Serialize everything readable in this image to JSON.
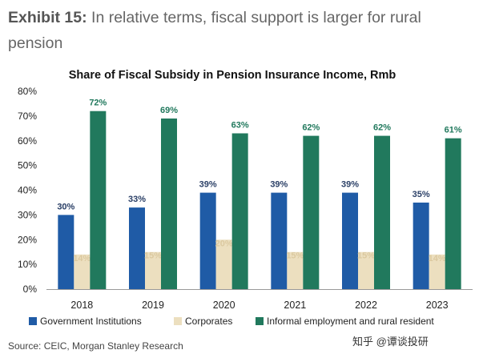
{
  "exhibit": {
    "label": "Exhibit 15:",
    "text": "In relative terms, fiscal support is larger for rural pension"
  },
  "colors": {
    "government": "#1f5ba6",
    "corporates": "#ecdfbf",
    "informal": "#21795d",
    "corporates_label": "#dbc9a0"
  },
  "chart_data": {
    "type": "bar",
    "title": "Share of Fiscal Subsidy in Pension Insurance Income, Rmb",
    "categories": [
      "2018",
      "2019",
      "2020",
      "2021",
      "2022",
      "2023"
    ],
    "series": [
      {
        "name": "Government Institutions",
        "values": [
          30,
          33,
          39,
          39,
          39,
          35
        ],
        "labels": [
          "30%",
          "33%",
          "39%",
          "39%",
          "39%",
          "35%"
        ]
      },
      {
        "name": "Corporates",
        "values": [
          14,
          15,
          20,
          15,
          15,
          14
        ],
        "labels": [
          "14%",
          "15%",
          "20%",
          "15%",
          "15%",
          "14%"
        ]
      },
      {
        "name": "Informal employment and rural resident",
        "values": [
          72,
          69,
          63,
          62,
          62,
          61
        ],
        "labels": [
          "72%",
          "69%",
          "63%",
          "62%",
          "62%",
          "61%"
        ]
      }
    ],
    "yticks": [
      "0%",
      "10%",
      "20%",
      "30%",
      "40%",
      "50%",
      "60%",
      "70%",
      "80%"
    ],
    "ylim": [
      0,
      80
    ],
    "xlabel": "",
    "ylabel": "",
    "legend": "bottom",
    "grid": false
  },
  "source": "Source: CEIC, Morgan Stanley Research",
  "watermark": "知乎 @谭谈投研"
}
